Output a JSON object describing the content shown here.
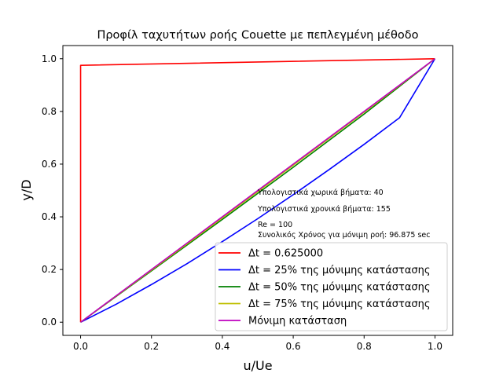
{
  "chart_data": {
    "type": "line",
    "title": "Προφίλ ταχυτήτων ροής Couette με πεπλεγμένη μέθοδο",
    "xlabel": "u/Ue",
    "ylabel": "y/D",
    "xlim": [
      -0.05,
      1.05
    ],
    "ylim": [
      -0.05,
      1.05
    ],
    "xticks": [
      0.0,
      0.2,
      0.4,
      0.6,
      0.8,
      1.0
    ],
    "yticks": [
      0.0,
      0.2,
      0.4,
      0.6,
      0.8,
      1.0
    ],
    "grid": false,
    "legend_position": "lower-right",
    "series": [
      {
        "name": "Δt = 0.625000",
        "color": "#ff0000",
        "x": [
          0.0,
          0.0,
          0.0,
          1.0
        ],
        "y": [
          0.0,
          0.8,
          0.975,
          1.0
        ]
      },
      {
        "name": "Δt = 25% της μόνιμης κατάστασης",
        "color": "#0000ff",
        "x": [
          0.0,
          0.1,
          0.2,
          0.3,
          0.4,
          0.5,
          0.6,
          0.7,
          0.8,
          0.9,
          1.0
        ],
        "y": [
          0.0,
          0.068,
          0.143,
          0.222,
          0.306,
          0.393,
          0.484,
          0.578,
          0.675,
          0.776,
          1.0
        ]
      },
      {
        "name": "Δt = 50% της μόνιμης κατάστασης",
        "color": "#008000",
        "x": [
          0.0,
          0.2,
          0.4,
          0.6,
          0.8,
          1.0
        ],
        "y": [
          0.0,
          0.195,
          0.39,
          0.588,
          0.79,
          1.0
        ]
      },
      {
        "name": "Δt = 75% της μόνιμης κατάστασης",
        "color": "#bfbf00",
        "x": [
          0.0,
          0.2,
          0.4,
          0.6,
          0.8,
          1.0
        ],
        "y": [
          0.0,
          0.198,
          0.396,
          0.596,
          0.797,
          1.0
        ]
      },
      {
        "name": " Μόνιμη κατάσταση",
        "color": "#bf00bf",
        "x": [
          0.0,
          1.0
        ],
        "y": [
          0.0,
          1.0
        ]
      }
    ],
    "annotations": [
      "Υπολογιστικά χωρικά βήματα: 40",
      "Υπολογιστικά χρονικά βήματα: 155",
      "Re = 100",
      "Συνολικός Χρόνος για μόνιμη ροή: 96.875 sec"
    ]
  }
}
